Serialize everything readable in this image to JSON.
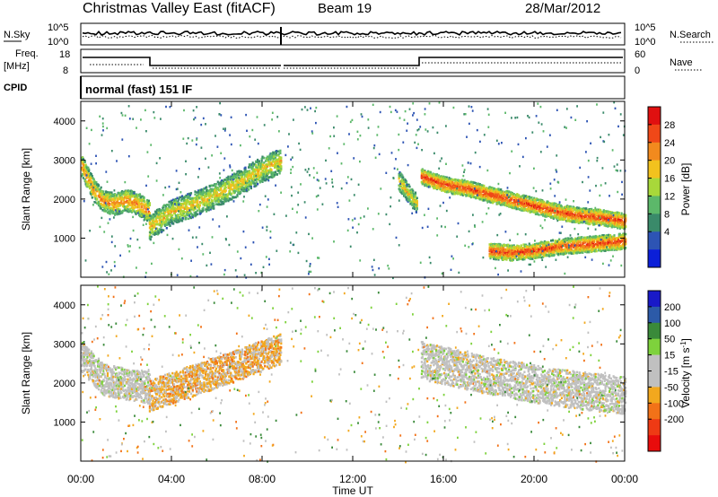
{
  "header": {
    "title": "Christmas Valley East (fitACF)",
    "beam": "Beam 19",
    "date": "28/Mar/2012"
  },
  "upper_panels": {
    "nsky_label": "N.Sky",
    "nsky_ticks": [
      "10^5",
      "10^0"
    ],
    "nsearch_label": "N.Search",
    "nsearch_ticks": [
      "10^5",
      "10^0"
    ],
    "freq_label": "Freq.",
    "freq_unit": "[MHz]",
    "freq_ticks": [
      "18",
      "8"
    ],
    "nave_label": "Nave",
    "nave_ticks": [
      "60",
      "0"
    ],
    "cpid_label": "CPID",
    "cpid_value": "normal (fast) 151 IF"
  },
  "xaxis": {
    "label": "Time UT",
    "ticks": [
      "00:00",
      "04:00",
      "08:00",
      "12:00",
      "16:00",
      "20:00",
      "00:00"
    ]
  },
  "colors": {
    "power": [
      "#0b1fd8",
      "#2d54b4",
      "#3a8a6a",
      "#5cb86a",
      "#a8d83a",
      "#f2c21e",
      "#f28a1e",
      "#f04818",
      "#e01010"
    ],
    "velocity": [
      "#1919c8",
      "#2c5aa8",
      "#3a8a3a",
      "#7ed23c",
      "#c0c0c0",
      "#c0c0c0",
      "#f2a81e",
      "#f27218",
      "#ee3a14",
      "#e80c0c"
    ]
  },
  "chart_data": [
    {
      "type": "heatmap",
      "title": "",
      "xlabel": "Time UT",
      "ylabel": "Slant Range [km]",
      "xlim": [
        0,
        24
      ],
      "ylim": [
        0,
        4500
      ],
      "yticks": [
        "1000",
        "2000",
        "3000",
        "4000"
      ],
      "colorbar": {
        "label": "Power [dB]",
        "ticks": [
          "28",
          "24",
          "20",
          "16",
          "12",
          "8",
          "4"
        ],
        "range": [
          0,
          32
        ]
      },
      "bands": [
        {
          "t": [
            0.0,
            0.5,
            1.0,
            1.5,
            2.0,
            2.5,
            3.0
          ],
          "range_km": [
            2900,
            2300,
            1950,
            1900,
            2000,
            1900,
            1700
          ],
          "width_km": 350,
          "power_db": 24
        },
        {
          "t": [
            3.0,
            4.0,
            5.0,
            6.0,
            7.0,
            8.0,
            8.8
          ],
          "range_km": [
            1300,
            1700,
            1900,
            2150,
            2450,
            2800,
            3000
          ],
          "width_km": 400,
          "power_db": 20
        },
        {
          "t": [
            14.0,
            14.8
          ],
          "range_km": [
            2500,
            1900
          ],
          "width_km": 300,
          "power_db": 20
        },
        {
          "t": [
            15.0,
            16.0,
            17.0,
            18.0,
            19.0,
            20.0,
            21.0,
            22.0,
            23.0,
            24.0
          ],
          "range_km": [
            2600,
            2400,
            2300,
            2150,
            2000,
            1850,
            1700,
            1600,
            1550,
            1450
          ],
          "width_km": 250,
          "power_db": 28
        },
        {
          "t": [
            18.0,
            19.0,
            20.0,
            21.0,
            22.0,
            23.0,
            24.0
          ],
          "range_km": [
            700,
            650,
            700,
            800,
            850,
            900,
            950
          ],
          "width_km": 250,
          "power_db": 28
        }
      ]
    },
    {
      "type": "heatmap",
      "title": "",
      "xlabel": "Time UT",
      "ylabel": "Slant Range [km]",
      "xlim": [
        0,
        24
      ],
      "ylim": [
        0,
        4500
      ],
      "yticks": [
        "1000",
        "2000",
        "3000",
        "4000"
      ],
      "colorbar": {
        "label": "Velocity [m s^-1]",
        "ticks": [
          "200",
          "100",
          "50",
          "15",
          "-15",
          "-50",
          "-100",
          "-200"
        ],
        "range": [
          -250,
          250
        ]
      },
      "bands": [
        {
          "t": [
            0.0,
            1.0,
            2.0,
            3.0
          ],
          "range_km": [
            2700,
            2100,
            2000,
            1900
          ],
          "width_km": 500,
          "velocity_ms": 0
        },
        {
          "t": [
            3.0,
            5.0,
            7.0,
            8.8
          ],
          "range_km": [
            1700,
            2100,
            2500,
            2900
          ],
          "width_km": 500,
          "velocity_ms": -60
        },
        {
          "t": [
            15.0,
            18.0,
            21.0,
            24.0
          ],
          "range_km": [
            2600,
            2200,
            1900,
            1700
          ],
          "width_km": 600,
          "velocity_ms": 0
        }
      ]
    }
  ]
}
